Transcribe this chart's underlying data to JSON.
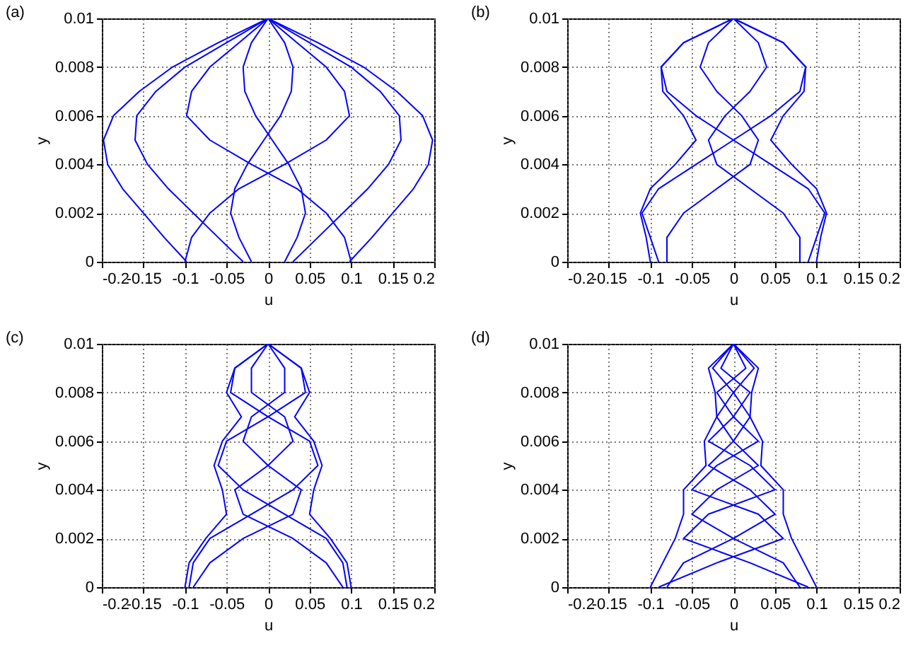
{
  "chart_data": [
    {
      "type": "line",
      "title": "(a)",
      "xlabel": "u",
      "ylabel": "y",
      "xlim": [
        -0.2,
        0.2
      ],
      "ylim": [
        0,
        0.01
      ],
      "xticks": [
        -0.2,
        -0.15,
        -0.1,
        -0.05,
        0,
        0.05,
        0.1,
        0.15,
        0.2
      ],
      "yticks": [
        0,
        0.002,
        0.004,
        0.006,
        0.008,
        0.01
      ],
      "grid": true,
      "series": [
        {
          "color": "#0000ff",
          "x": [
            0,
            0.06,
            0.115,
            0.155,
            0.186,
            0.198,
            0.193,
            0.175,
            0.15,
            0.125,
            0.098
          ],
          "values": [
            0.01,
            0.009,
            0.008,
            0.007,
            0.006,
            0.005,
            0.004,
            0.003,
            0.002,
            0.001,
            0
          ]
        },
        {
          "color": "#0000ff",
          "x": [
            0,
            -0.06,
            -0.115,
            -0.155,
            -0.186,
            -0.198,
            -0.193,
            -0.175,
            -0.15,
            -0.125,
            -0.098
          ],
          "values": [
            0.01,
            0.009,
            0.008,
            0.007,
            0.006,
            0.005,
            0.004,
            0.003,
            0.002,
            0.001,
            0
          ]
        },
        {
          "color": "#0000ff",
          "x": [
            0,
            0.05,
            0.1,
            0.135,
            0.158,
            0.16,
            0.145,
            0.12,
            0.09,
            0.06,
            0.03
          ],
          "values": [
            0.01,
            0.009,
            0.008,
            0.007,
            0.006,
            0.005,
            0.004,
            0.003,
            0.002,
            0.001,
            0
          ]
        },
        {
          "color": "#0000ff",
          "x": [
            0,
            -0.05,
            -0.1,
            -0.135,
            -0.158,
            -0.16,
            -0.145,
            -0.12,
            -0.09,
            -0.06,
            -0.03
          ],
          "values": [
            0.01,
            0.009,
            0.008,
            0.007,
            0.006,
            0.005,
            0.004,
            0.003,
            0.002,
            0.001,
            0
          ]
        },
        {
          "color": "#0000ff",
          "x": [
            0,
            0.035,
            0.07,
            0.092,
            0.098,
            0.07,
            0.02,
            -0.035,
            -0.07,
            -0.092,
            -0.1
          ],
          "values": [
            0.01,
            0.009,
            0.008,
            0.007,
            0.006,
            0.005,
            0.004,
            0.003,
            0.002,
            0.001,
            0
          ]
        },
        {
          "color": "#0000ff",
          "x": [
            0,
            -0.035,
            -0.07,
            -0.092,
            -0.098,
            -0.07,
            -0.02,
            0.035,
            0.07,
            0.092,
            0.1
          ],
          "values": [
            0.01,
            0.009,
            0.008,
            0.007,
            0.006,
            0.005,
            0.004,
            0.003,
            0.002,
            0.001,
            0
          ]
        },
        {
          "color": "#0000ff",
          "x": [
            0,
            0.02,
            0.03,
            0.028,
            0.015,
            -0.005,
            -0.025,
            -0.04,
            -0.045,
            -0.035,
            -0.02
          ],
          "values": [
            0.01,
            0.009,
            0.008,
            0.007,
            0.006,
            0.005,
            0.004,
            0.003,
            0.002,
            0.001,
            0
          ]
        },
        {
          "color": "#0000ff",
          "x": [
            0,
            -0.02,
            -0.03,
            -0.028,
            -0.015,
            0.005,
            0.025,
            0.04,
            0.045,
            0.035,
            0.02
          ],
          "values": [
            0.01,
            0.009,
            0.008,
            0.007,
            0.006,
            0.005,
            0.004,
            0.003,
            0.002,
            0.001,
            0
          ]
        }
      ]
    },
    {
      "type": "line",
      "title": "(b)",
      "xlabel": "u",
      "ylabel": "y",
      "xlim": [
        -0.2,
        0.2
      ],
      "ylim": [
        0,
        0.01
      ],
      "xticks": [
        -0.2,
        -0.15,
        -0.1,
        -0.05,
        0,
        0.05,
        0.1,
        0.15,
        0.2
      ],
      "yticks": [
        0,
        0.002,
        0.004,
        0.006,
        0.008,
        0.01
      ],
      "grid": true,
      "series": [
        {
          "color": "#0000ff",
          "x": [
            0,
            0.06,
            0.087,
            0.085,
            0.06,
            0.045,
            0.07,
            0.1,
            0.112,
            0.105,
            0.1
          ],
          "values": [
            0.01,
            0.009,
            0.008,
            0.007,
            0.006,
            0.005,
            0.004,
            0.003,
            0.002,
            0.001,
            0
          ]
        },
        {
          "color": "#0000ff",
          "x": [
            0,
            -0.06,
            -0.087,
            -0.085,
            -0.06,
            -0.045,
            -0.07,
            -0.1,
            -0.112,
            -0.105,
            -0.1
          ],
          "values": [
            0.01,
            0.009,
            0.008,
            0.007,
            0.006,
            0.005,
            0.004,
            0.003,
            0.002,
            0.001,
            0
          ]
        },
        {
          "color": "#0000ff",
          "x": [
            0,
            0.06,
            0.087,
            0.08,
            0.045,
            0,
            -0.045,
            -0.09,
            -0.11,
            -0.1,
            -0.09
          ],
          "values": [
            0.01,
            0.009,
            0.008,
            0.007,
            0.006,
            0.005,
            0.004,
            0.003,
            0.002,
            0.001,
            0
          ]
        },
        {
          "color": "#0000ff",
          "x": [
            0,
            -0.06,
            -0.087,
            -0.08,
            -0.045,
            0,
            0.045,
            0.09,
            0.11,
            0.1,
            0.09
          ],
          "values": [
            0.01,
            0.009,
            0.008,
            0.007,
            0.006,
            0.005,
            0.004,
            0.003,
            0.002,
            0.001,
            0
          ]
        },
        {
          "color": "#0000ff",
          "x": [
            0,
            0.03,
            0.04,
            0.02,
            -0.01,
            -0.03,
            -0.02,
            0.02,
            0.06,
            0.08,
            0.08
          ],
          "values": [
            0.01,
            0.009,
            0.008,
            0.007,
            0.006,
            0.005,
            0.004,
            0.003,
            0.002,
            0.001,
            0
          ]
        },
        {
          "color": "#0000ff",
          "x": [
            0,
            -0.03,
            -0.04,
            -0.02,
            0.01,
            0.03,
            0.02,
            -0.02,
            -0.06,
            -0.08,
            -0.08
          ],
          "values": [
            0.01,
            0.009,
            0.008,
            0.007,
            0.006,
            0.005,
            0.004,
            0.003,
            0.002,
            0.001,
            0
          ]
        }
      ]
    },
    {
      "type": "line",
      "title": "(c)",
      "xlabel": "u",
      "ylabel": "y",
      "xlim": [
        -0.2,
        0.2
      ],
      "ylim": [
        0,
        0.01
      ],
      "xticks": [
        -0.2,
        -0.15,
        -0.1,
        -0.05,
        0,
        0.05,
        0.1,
        0.15,
        0.2
      ],
      "yticks": [
        0,
        0.002,
        0.004,
        0.006,
        0.008,
        0.01
      ],
      "grid": true,
      "series": [
        {
          "color": "#0000ff",
          "x": [
            0,
            0.04,
            0.05,
            0.032,
            0.055,
            0.065,
            0.055,
            0.05,
            0.075,
            0.095,
            0.1
          ],
          "values": [
            0.01,
            0.009,
            0.008,
            0.007,
            0.006,
            0.005,
            0.004,
            0.003,
            0.002,
            0.001,
            0
          ]
        },
        {
          "color": "#0000ff",
          "x": [
            0,
            -0.04,
            -0.05,
            -0.032,
            -0.055,
            -0.065,
            -0.055,
            -0.05,
            -0.075,
            -0.095,
            -0.1
          ],
          "values": [
            0.01,
            0.009,
            0.008,
            0.007,
            0.006,
            0.005,
            0.004,
            0.003,
            0.002,
            0.001,
            0
          ]
        },
        {
          "color": "#0000ff",
          "x": [
            0,
            0.04,
            0.045,
            0,
            -0.05,
            -0.06,
            -0.03,
            0.02,
            0.07,
            0.09,
            0.095
          ],
          "values": [
            0.01,
            0.009,
            0.008,
            0.007,
            0.006,
            0.005,
            0.004,
            0.003,
            0.002,
            0.001,
            0
          ]
        },
        {
          "color": "#0000ff",
          "x": [
            0,
            -0.04,
            -0.045,
            0,
            0.05,
            0.06,
            0.03,
            -0.02,
            -0.07,
            -0.09,
            -0.095
          ],
          "values": [
            0.01,
            0.009,
            0.008,
            0.007,
            0.006,
            0.005,
            0.004,
            0.003,
            0.002,
            0.001,
            0
          ]
        },
        {
          "color": "#0000ff",
          "x": [
            0,
            0.02,
            0.02,
            -0.02,
            -0.03,
            0,
            0.04,
            0.03,
            -0.03,
            -0.07,
            -0.09
          ],
          "values": [
            0.01,
            0.009,
            0.008,
            0.007,
            0.006,
            0.005,
            0.004,
            0.003,
            0.002,
            0.001,
            0
          ]
        },
        {
          "color": "#0000ff",
          "x": [
            0,
            -0.02,
            -0.02,
            0.02,
            0.03,
            0,
            -0.04,
            -0.03,
            0.03,
            0.07,
            0.09
          ],
          "values": [
            0.01,
            0.009,
            0.008,
            0.007,
            0.006,
            0.005,
            0.004,
            0.003,
            0.002,
            0.001,
            0
          ]
        }
      ]
    },
    {
      "type": "line",
      "title": "(d)",
      "xlabel": "u",
      "ylabel": "y",
      "xlim": [
        -0.2,
        0.2
      ],
      "ylim": [
        0,
        0.01
      ],
      "xticks": [
        -0.2,
        -0.15,
        -0.1,
        -0.05,
        0,
        0.05,
        0.1,
        0.15,
        0.2
      ],
      "yticks": [
        0,
        0.002,
        0.004,
        0.006,
        0.008,
        0.01
      ],
      "grid": true,
      "series": [
        {
          "color": "#0000ff",
          "x": [
            0,
            0.03,
            0.022,
            0.02,
            0.035,
            0.033,
            0.06,
            0.06,
            0.07,
            0.085,
            0.1
          ],
          "values": [
            0.01,
            0.009,
            0.008,
            0.007,
            0.006,
            0.005,
            0.004,
            0.003,
            0.002,
            0.001,
            0
          ]
        },
        {
          "color": "#0000ff",
          "x": [
            0,
            -0.03,
            -0.022,
            -0.02,
            -0.035,
            -0.033,
            -0.06,
            -0.06,
            -0.07,
            -0.085,
            -0.1
          ],
          "values": [
            0.01,
            0.009,
            0.008,
            0.007,
            0.006,
            0.005,
            0.004,
            0.003,
            0.002,
            0.001,
            0
          ]
        },
        {
          "color": "#0000ff",
          "x": [
            0,
            0.025,
            0,
            -0.02,
            0,
            0.03,
            -0.02,
            -0.05,
            0,
            0.06,
            0.08
          ],
          "values": [
            0.01,
            0.009,
            0.008,
            0.007,
            0.006,
            0.005,
            0.004,
            0.003,
            0.002,
            0.001,
            0
          ]
        },
        {
          "color": "#0000ff",
          "x": [
            0,
            -0.025,
            0,
            0.02,
            0,
            -0.03,
            0.02,
            0.05,
            0,
            -0.06,
            -0.08
          ],
          "values": [
            0.01,
            0.009,
            0.008,
            0.007,
            0.006,
            0.005,
            0.004,
            0.003,
            0.002,
            0.001,
            0
          ]
        },
        {
          "color": "#0000ff",
          "x": [
            0,
            0.015,
            -0.02,
            0,
            0.03,
            -0.02,
            -0.05,
            0.03,
            0.06,
            -0.02,
            -0.09
          ],
          "values": [
            0.01,
            0.009,
            0.008,
            0.007,
            0.006,
            0.005,
            0.004,
            0.003,
            0.002,
            0.001,
            0
          ]
        },
        {
          "color": "#0000ff",
          "x": [
            0,
            -0.015,
            0.02,
            0,
            -0.03,
            0.02,
            0.05,
            -0.03,
            -0.06,
            0.02,
            0.09
          ],
          "values": [
            0.01,
            0.009,
            0.008,
            0.007,
            0.006,
            0.005,
            0.004,
            0.003,
            0.002,
            0.001,
            0
          ]
        }
      ]
    }
  ]
}
